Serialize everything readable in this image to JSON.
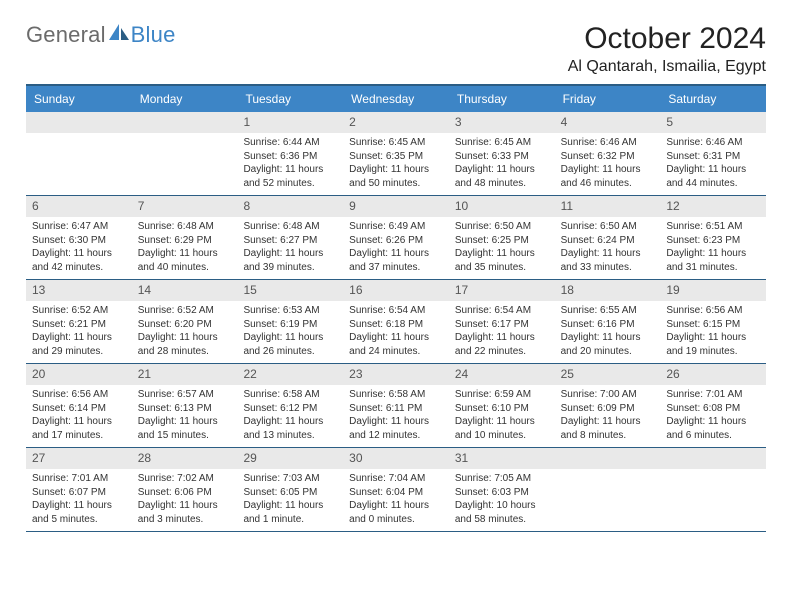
{
  "brand": {
    "part1": "General",
    "part2": "Blue"
  },
  "title": "October 2024",
  "location": "Al Qantarah, Ismailia, Egypt",
  "colors": {
    "header_bar": "#3d85c6",
    "week_border": "#2b5d84",
    "daynum_bg": "#e9e9e9",
    "text": "#222222",
    "muted": "#555555",
    "content_text": "#333333",
    "logo_gray": "#6b6b6b"
  },
  "dow": [
    "Sunday",
    "Monday",
    "Tuesday",
    "Wednesday",
    "Thursday",
    "Friday",
    "Saturday"
  ],
  "weeks": [
    [
      {
        "n": "",
        "sunrise": "",
        "sunset": "",
        "daylight": ""
      },
      {
        "n": "",
        "sunrise": "",
        "sunset": "",
        "daylight": ""
      },
      {
        "n": "1",
        "sunrise": "Sunrise: 6:44 AM",
        "sunset": "Sunset: 6:36 PM",
        "daylight": "Daylight: 11 hours and 52 minutes."
      },
      {
        "n": "2",
        "sunrise": "Sunrise: 6:45 AM",
        "sunset": "Sunset: 6:35 PM",
        "daylight": "Daylight: 11 hours and 50 minutes."
      },
      {
        "n": "3",
        "sunrise": "Sunrise: 6:45 AM",
        "sunset": "Sunset: 6:33 PM",
        "daylight": "Daylight: 11 hours and 48 minutes."
      },
      {
        "n": "4",
        "sunrise": "Sunrise: 6:46 AM",
        "sunset": "Sunset: 6:32 PM",
        "daylight": "Daylight: 11 hours and 46 minutes."
      },
      {
        "n": "5",
        "sunrise": "Sunrise: 6:46 AM",
        "sunset": "Sunset: 6:31 PM",
        "daylight": "Daylight: 11 hours and 44 minutes."
      }
    ],
    [
      {
        "n": "6",
        "sunrise": "Sunrise: 6:47 AM",
        "sunset": "Sunset: 6:30 PM",
        "daylight": "Daylight: 11 hours and 42 minutes."
      },
      {
        "n": "7",
        "sunrise": "Sunrise: 6:48 AM",
        "sunset": "Sunset: 6:29 PM",
        "daylight": "Daylight: 11 hours and 40 minutes."
      },
      {
        "n": "8",
        "sunrise": "Sunrise: 6:48 AM",
        "sunset": "Sunset: 6:27 PM",
        "daylight": "Daylight: 11 hours and 39 minutes."
      },
      {
        "n": "9",
        "sunrise": "Sunrise: 6:49 AM",
        "sunset": "Sunset: 6:26 PM",
        "daylight": "Daylight: 11 hours and 37 minutes."
      },
      {
        "n": "10",
        "sunrise": "Sunrise: 6:50 AM",
        "sunset": "Sunset: 6:25 PM",
        "daylight": "Daylight: 11 hours and 35 minutes."
      },
      {
        "n": "11",
        "sunrise": "Sunrise: 6:50 AM",
        "sunset": "Sunset: 6:24 PM",
        "daylight": "Daylight: 11 hours and 33 minutes."
      },
      {
        "n": "12",
        "sunrise": "Sunrise: 6:51 AM",
        "sunset": "Sunset: 6:23 PM",
        "daylight": "Daylight: 11 hours and 31 minutes."
      }
    ],
    [
      {
        "n": "13",
        "sunrise": "Sunrise: 6:52 AM",
        "sunset": "Sunset: 6:21 PM",
        "daylight": "Daylight: 11 hours and 29 minutes."
      },
      {
        "n": "14",
        "sunrise": "Sunrise: 6:52 AM",
        "sunset": "Sunset: 6:20 PM",
        "daylight": "Daylight: 11 hours and 28 minutes."
      },
      {
        "n": "15",
        "sunrise": "Sunrise: 6:53 AM",
        "sunset": "Sunset: 6:19 PM",
        "daylight": "Daylight: 11 hours and 26 minutes."
      },
      {
        "n": "16",
        "sunrise": "Sunrise: 6:54 AM",
        "sunset": "Sunset: 6:18 PM",
        "daylight": "Daylight: 11 hours and 24 minutes."
      },
      {
        "n": "17",
        "sunrise": "Sunrise: 6:54 AM",
        "sunset": "Sunset: 6:17 PM",
        "daylight": "Daylight: 11 hours and 22 minutes."
      },
      {
        "n": "18",
        "sunrise": "Sunrise: 6:55 AM",
        "sunset": "Sunset: 6:16 PM",
        "daylight": "Daylight: 11 hours and 20 minutes."
      },
      {
        "n": "19",
        "sunrise": "Sunrise: 6:56 AM",
        "sunset": "Sunset: 6:15 PM",
        "daylight": "Daylight: 11 hours and 19 minutes."
      }
    ],
    [
      {
        "n": "20",
        "sunrise": "Sunrise: 6:56 AM",
        "sunset": "Sunset: 6:14 PM",
        "daylight": "Daylight: 11 hours and 17 minutes."
      },
      {
        "n": "21",
        "sunrise": "Sunrise: 6:57 AM",
        "sunset": "Sunset: 6:13 PM",
        "daylight": "Daylight: 11 hours and 15 minutes."
      },
      {
        "n": "22",
        "sunrise": "Sunrise: 6:58 AM",
        "sunset": "Sunset: 6:12 PM",
        "daylight": "Daylight: 11 hours and 13 minutes."
      },
      {
        "n": "23",
        "sunrise": "Sunrise: 6:58 AM",
        "sunset": "Sunset: 6:11 PM",
        "daylight": "Daylight: 11 hours and 12 minutes."
      },
      {
        "n": "24",
        "sunrise": "Sunrise: 6:59 AM",
        "sunset": "Sunset: 6:10 PM",
        "daylight": "Daylight: 11 hours and 10 minutes."
      },
      {
        "n": "25",
        "sunrise": "Sunrise: 7:00 AM",
        "sunset": "Sunset: 6:09 PM",
        "daylight": "Daylight: 11 hours and 8 minutes."
      },
      {
        "n": "26",
        "sunrise": "Sunrise: 7:01 AM",
        "sunset": "Sunset: 6:08 PM",
        "daylight": "Daylight: 11 hours and 6 minutes."
      }
    ],
    [
      {
        "n": "27",
        "sunrise": "Sunrise: 7:01 AM",
        "sunset": "Sunset: 6:07 PM",
        "daylight": "Daylight: 11 hours and 5 minutes."
      },
      {
        "n": "28",
        "sunrise": "Sunrise: 7:02 AM",
        "sunset": "Sunset: 6:06 PM",
        "daylight": "Daylight: 11 hours and 3 minutes."
      },
      {
        "n": "29",
        "sunrise": "Sunrise: 7:03 AM",
        "sunset": "Sunset: 6:05 PM",
        "daylight": "Daylight: 11 hours and 1 minute."
      },
      {
        "n": "30",
        "sunrise": "Sunrise: 7:04 AM",
        "sunset": "Sunset: 6:04 PM",
        "daylight": "Daylight: 11 hours and 0 minutes."
      },
      {
        "n": "31",
        "sunrise": "Sunrise: 7:05 AM",
        "sunset": "Sunset: 6:03 PM",
        "daylight": "Daylight: 10 hours and 58 minutes."
      },
      {
        "n": "",
        "sunrise": "",
        "sunset": "",
        "daylight": ""
      },
      {
        "n": "",
        "sunrise": "",
        "sunset": "",
        "daylight": ""
      }
    ]
  ]
}
